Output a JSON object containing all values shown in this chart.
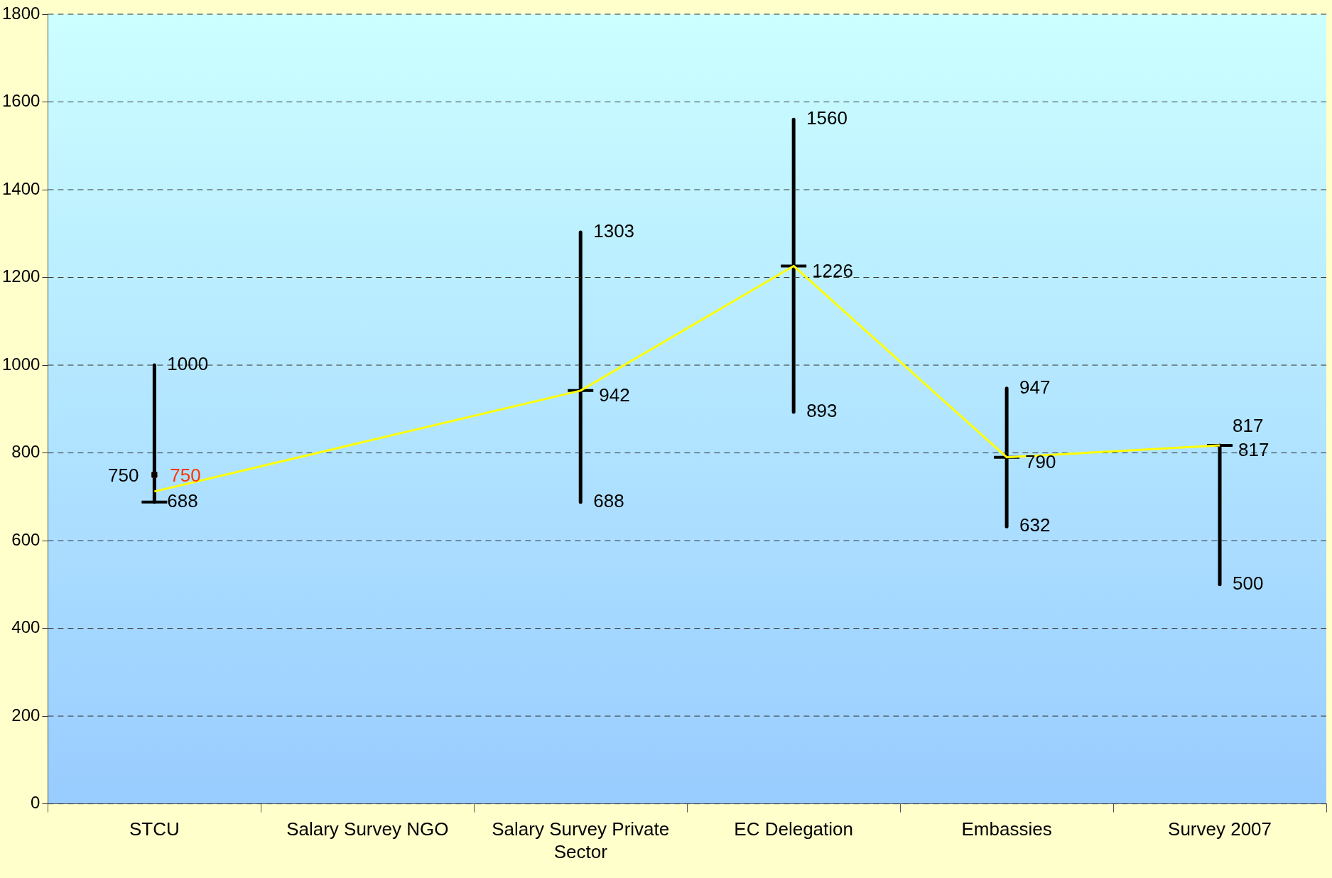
{
  "chart_data": {
    "type": "candlestick",
    "categories": [
      "STCU",
      "Salary Survey NGO",
      "Salary Survey Private Sector",
      "EC Delegation",
      "Embassies",
      "Survey 2007"
    ],
    "ohlc": [
      [
        688,
        1000,
        688,
        688
      ],
      null,
      [
        942,
        1303,
        688,
        942
      ],
      [
        1226,
        1560,
        893,
        1226
      ],
      [
        790,
        947,
        632,
        790
      ],
      [
        817,
        817,
        500,
        817
      ]
    ],
    "color": "#000000",
    "series": [
      {
        "type": "line",
        "color": "#ffff00",
        "values": [
          712,
          null,
          942,
          1226,
          790,
          817
        ],
        "value_labels": [
          null,
          null,
          "942",
          "1226",
          "790",
          "817"
        ]
      },
      {
        "type": "scatter",
        "color": "#000000",
        "x": [
          "STCU"
        ],
        "values": [
          750
        ],
        "value_labels": [
          "750"
        ],
        "marker": "square"
      },
      {
        "type": "scatter",
        "color": "#ff3300",
        "x": [
          "STCU"
        ],
        "values": [
          750
        ],
        "value_labels": [
          "750"
        ],
        "marker": "square"
      }
    ],
    "ylim": [
      0,
      1800
    ],
    "yticks": [
      0,
      200,
      400,
      600,
      800,
      1000,
      1200,
      1400,
      1600,
      1800
    ],
    "grid": "y",
    "legend": false,
    "annotations": [
      {
        "text": "1000",
        "x": "STCU",
        "y": 1000
      },
      {
        "text": "688",
        "x": "STCU",
        "y": 688
      },
      {
        "text": "1303",
        "x": "Salary Survey Private Sector",
        "y": 1303
      },
      {
        "text": "688",
        "x": "Salary Survey Private Sector",
        "y": 688
      },
      {
        "text": "1560",
        "x": "EC Delegation",
        "y": 1560
      },
      {
        "text": "893",
        "x": "EC Delegation",
        "y": 893
      },
      {
        "text": "947",
        "x": "Embassies",
        "y": 947
      },
      {
        "text": "632",
        "x": "Embassies",
        "y": 632
      },
      {
        "text": "817",
        "x": "Survey 2007",
        "y": 817
      },
      {
        "text": "500",
        "x": "Survey 2007",
        "y": 500
      }
    ]
  }
}
